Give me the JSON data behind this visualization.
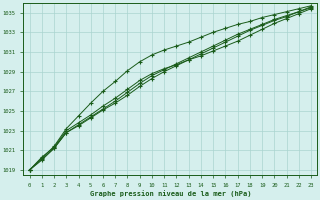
{
  "xlabel": "Graphe pression niveau de la mer (hPa)",
  "xlim": [
    0,
    23
  ],
  "ylim": [
    1018.5,
    1036.0
  ],
  "yticks": [
    1019,
    1021,
    1023,
    1025,
    1027,
    1029,
    1031,
    1033,
    1035
  ],
  "xticks": [
    0,
    1,
    2,
    3,
    4,
    5,
    6,
    7,
    8,
    9,
    10,
    11,
    12,
    13,
    14,
    15,
    16,
    17,
    18,
    19,
    20,
    21,
    22,
    23
  ],
  "bg_color": "#d5efed",
  "grid_color": "#aad4d0",
  "line_color": "#1a5c1a",
  "line1_y": [
    1019.0,
    1020.3,
    1021.3,
    1023.0,
    1023.8,
    1024.6,
    1025.5,
    1026.3,
    1027.2,
    1028.1,
    1028.8,
    1029.3,
    1029.7,
    1030.2,
    1030.6,
    1031.1,
    1031.6,
    1032.1,
    1032.7,
    1033.3,
    1033.9,
    1034.4,
    1034.9,
    1035.4
  ],
  "line2_y": [
    1019.0,
    1020.2,
    1021.4,
    1023.2,
    1024.5,
    1025.8,
    1027.0,
    1028.0,
    1029.1,
    1030.0,
    1030.7,
    1031.2,
    1031.6,
    1032.0,
    1032.5,
    1033.0,
    1033.4,
    1033.8,
    1034.1,
    1034.5,
    1034.8,
    1035.1,
    1035.4,
    1035.7
  ],
  "line3_y": [
    1019.0,
    1020.0,
    1021.2,
    1022.8,
    1023.5,
    1024.3,
    1025.1,
    1025.8,
    1026.6,
    1027.5,
    1028.3,
    1029.0,
    1029.6,
    1030.2,
    1030.8,
    1031.4,
    1032.0,
    1032.6,
    1033.2,
    1033.7,
    1034.2,
    1034.6,
    1035.1,
    1035.6
  ],
  "line4_y": [
    1019.0,
    1020.1,
    1021.2,
    1022.8,
    1023.6,
    1024.4,
    1025.2,
    1026.0,
    1026.9,
    1027.8,
    1028.6,
    1029.2,
    1029.8,
    1030.4,
    1031.0,
    1031.6,
    1032.2,
    1032.8,
    1033.3,
    1033.8,
    1034.3,
    1034.7,
    1035.1,
    1035.5
  ]
}
